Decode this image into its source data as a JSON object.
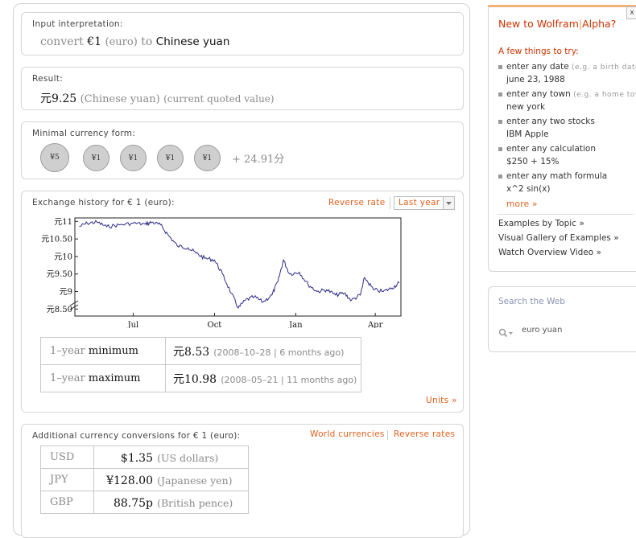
{
  "input_pod": {
    "title": "Input interpretation:",
    "convert": "convert",
    "amount": "€1",
    "unit": "(euro)",
    "to": "to",
    "target": "Chinese yuan"
  },
  "result_pod": {
    "title": "Result:",
    "value": "元9.25",
    "unit": "(Chinese yuan)",
    "note": "(current quoted value)"
  },
  "min_currency_pod": {
    "title": "Minimal currency form:",
    "coins": [
      "¥5",
      "¥1",
      "¥1",
      "¥1",
      "¥1"
    ],
    "remainder": "+ 24.91分"
  },
  "history_pod": {
    "title": "Exchange history for € 1 (euro):",
    "reverse_rate": "Reverse rate",
    "range_select": "Last year",
    "units_link": "Units »",
    "stats": [
      {
        "label_a": "1–year ",
        "label_b": "minimum",
        "value": "元8.53",
        "detail": "(2008–10–28 | 6 months ago)"
      },
      {
        "label_a": "1–year ",
        "label_b": "maximum",
        "value": "元10.98",
        "detail": "(2008–05–21 | 11 months ago)"
      }
    ]
  },
  "chart_data": {
    "type": "line",
    "title": "",
    "xlabel": "",
    "ylabel": "",
    "x_ticks": [
      "Jul",
      "Oct",
      "Jan",
      "Apr"
    ],
    "y_ticks": [
      "元11",
      "元10.50",
      "元10",
      "元9.50",
      "元9",
      "元8.50"
    ],
    "ylim": [
      8.3,
      11.1
    ],
    "grid": false,
    "series": [
      {
        "x": [
          "2008-05-01",
          "2008-05-10",
          "2008-05-21",
          "2008-06-01",
          "2008-06-15",
          "2008-07-01",
          "2008-07-15",
          "2008-07-22",
          "2008-08-01",
          "2008-08-10",
          "2008-08-20",
          "2008-09-01",
          "2008-09-10",
          "2008-09-20",
          "2008-10-01",
          "2008-10-10",
          "2008-10-20",
          "2008-10-28",
          "2008-11-05",
          "2008-11-15",
          "2008-11-25",
          "2008-12-05",
          "2008-12-12",
          "2008-12-18",
          "2008-12-25",
          "2009-01-05",
          "2009-01-15",
          "2009-01-25",
          "2009-02-05",
          "2009-02-15",
          "2009-02-25",
          "2009-03-05",
          "2009-03-15",
          "2009-03-20",
          "2009-03-30",
          "2009-04-10",
          "2009-04-20",
          "2009-04-28"
        ],
        "values": [
          10.85,
          10.95,
          10.98,
          10.85,
          10.9,
          10.95,
          10.92,
          10.98,
          10.9,
          10.6,
          10.3,
          10.25,
          10.1,
          9.95,
          9.9,
          9.5,
          8.95,
          8.53,
          8.75,
          8.85,
          8.7,
          8.9,
          9.3,
          9.9,
          9.5,
          9.55,
          9.2,
          9.0,
          9.05,
          8.9,
          8.95,
          8.75,
          8.9,
          9.4,
          9.05,
          9.0,
          9.1,
          9.25
        ]
      }
    ]
  },
  "conversions_pod": {
    "title": "Additional currency conversions for € 1 (euro):",
    "world_link": "World currencies",
    "reverse_link": "Reverse rates",
    "rows": [
      {
        "code": "USD",
        "value": "$1.35",
        "name": "(US dollars)"
      },
      {
        "code": "JPY",
        "value": "¥128.00",
        "name": "(Japanese yen)"
      },
      {
        "code": "GBP",
        "value": "88.75p",
        "name": "(British pence)"
      }
    ]
  },
  "sidebar": {
    "close": "x",
    "new_title_a": "New to Wolfram",
    "new_title_b": "|",
    "new_title_c": "Alpha?",
    "tips_heading": "A few things to try:",
    "tips": [
      {
        "label": "enter any date",
        "hint": "(e.g. a birth date)",
        "example": "june 23, 1988"
      },
      {
        "label": "enter any town",
        "hint": "(e.g. a home town)",
        "example": "new york"
      },
      {
        "label": "enter any two stocks",
        "hint": "",
        "example": "IBM Apple"
      },
      {
        "label": "enter any calculation",
        "hint": "",
        "example": "$250 + 15%"
      },
      {
        "label": "enter any math formula",
        "hint": "",
        "example": "x^2 sin(x)"
      }
    ],
    "more": "more »",
    "links": [
      "Examples by Topic »",
      "Visual Gallery of Examples »",
      "Watch Overview Video »"
    ],
    "search_title": "Search the Web",
    "search_value": "euro yuan"
  },
  "colors": {
    "accent_orange": "#e0601b",
    "title_red": "#cc3300",
    "line_blue": "#2c2c8a"
  }
}
